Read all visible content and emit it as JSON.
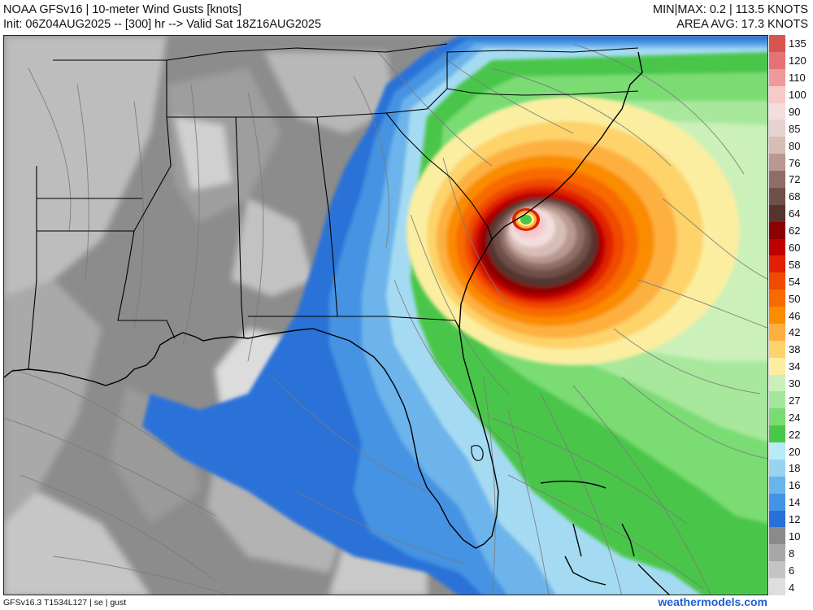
{
  "header": {
    "title": "NOAA GFSv16 | 10-meter Wind Gusts [knots]",
    "init_line": "Init: 06Z04AUG2025 -- [300] hr --> Valid Sat 18Z16AUG2025",
    "minmax": "MIN|MAX: 0.2 | 113.5 KNOTS",
    "area_avg": "AREA AVG: 17.3 KNOTS"
  },
  "legend": {
    "units": "knots",
    "levels": [
      {
        "label": "135",
        "color": "#d9534f"
      },
      {
        "label": "120",
        "color": "#e57373"
      },
      {
        "label": "110",
        "color": "#ef9a9a"
      },
      {
        "label": "100",
        "color": "#f8c9c9"
      },
      {
        "label": "90",
        "color": "#f2dede"
      },
      {
        "label": "85",
        "color": "#e6d3cf"
      },
      {
        "label": "80",
        "color": "#d8bdb5"
      },
      {
        "label": "76",
        "color": "#b89890"
      },
      {
        "label": "72",
        "color": "#8f6e66"
      },
      {
        "label": "68",
        "color": "#6f5049"
      },
      {
        "label": "64",
        "color": "#55342d"
      },
      {
        "label": "62",
        "color": "#8b0000"
      },
      {
        "label": "60",
        "color": "#c00000"
      },
      {
        "label": "58",
        "color": "#e02000"
      },
      {
        "label": "54",
        "color": "#f04a00"
      },
      {
        "label": "50",
        "color": "#f86a00"
      },
      {
        "label": "46",
        "color": "#fb8c00"
      },
      {
        "label": "42",
        "color": "#fdb040"
      },
      {
        "label": "38",
        "color": "#fdd36b"
      },
      {
        "label": "34",
        "color": "#fbeea0"
      },
      {
        "label": "30",
        "color": "#c8f0b8"
      },
      {
        "label": "27",
        "color": "#a3e89a"
      },
      {
        "label": "24",
        "color": "#79dc72"
      },
      {
        "label": "22",
        "color": "#49c94a"
      },
      {
        "label": "20",
        "color": "#b6ecf5"
      },
      {
        "label": "18",
        "color": "#96d4f0"
      },
      {
        "label": "16",
        "color": "#6ab4ec"
      },
      {
        "label": "14",
        "color": "#4394e4"
      },
      {
        "label": "12",
        "color": "#2770d8"
      },
      {
        "label": "10",
        "color": "#8a8a8a"
      },
      {
        "label": "8",
        "color": "#a7a7a7"
      },
      {
        "label": "6",
        "color": "#c4c4c4"
      },
      {
        "label": "4",
        "color": "#dedede"
      }
    ]
  },
  "footer": {
    "model_info": "GFSv16.3 T1534L127 | se | gust",
    "site": "weathermodels.com"
  }
}
